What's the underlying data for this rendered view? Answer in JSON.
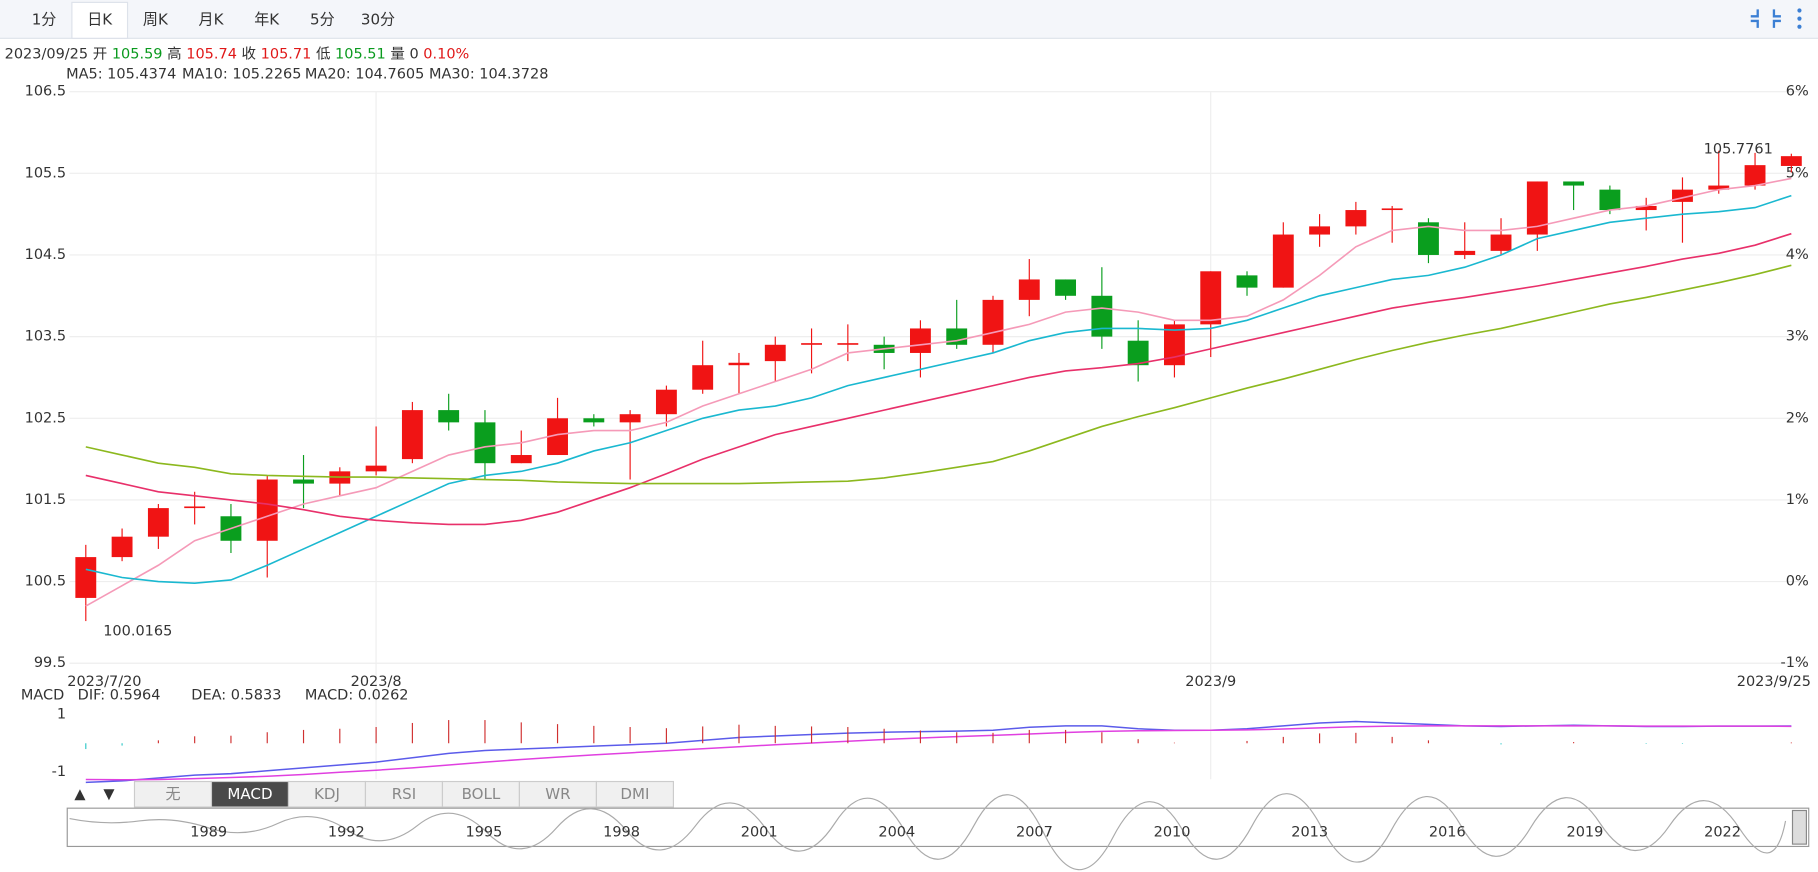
{
  "toolbar": {
    "tabs": [
      "1分",
      "日K",
      "周K",
      "月K",
      "年K",
      "5分",
      "30分"
    ],
    "active": 1
  },
  "quote_line": [
    {
      "text": "2023/09/25",
      "color": "#333"
    },
    {
      "text": "开",
      "color": "#333"
    },
    {
      "text": "105.59",
      "color": "#0a9a1e"
    },
    {
      "text": "高",
      "color": "#333"
    },
    {
      "text": "105.74",
      "color": "#e01818"
    },
    {
      "text": "收",
      "color": "#333"
    },
    {
      "text": "105.71",
      "color": "#e01818"
    },
    {
      "text": "低",
      "color": "#333"
    },
    {
      "text": "105.51",
      "color": "#0a9a1e"
    },
    {
      "text": "量",
      "color": "#333"
    },
    {
      "text": "0",
      "color": "#333"
    },
    {
      "text": "0.10%",
      "color": "#e01818"
    }
  ],
  "chart_data": [
    {
      "type": "candlestick",
      "up_color": "#f01414",
      "down_color": "#0a9e1e",
      "categories": [
        "2023/7/20",
        null,
        null,
        null,
        null,
        null,
        null,
        null,
        "2023/8",
        null,
        null,
        null,
        null,
        null,
        null,
        null,
        null,
        null,
        null,
        null,
        null,
        null,
        null,
        null,
        null,
        null,
        null,
        null,
        null,
        null,
        null,
        "2023/9",
        null,
        null,
        null,
        null,
        null,
        null,
        null,
        null,
        null,
        null,
        null,
        null,
        null,
        null,
        null,
        "2023/9/25"
      ],
      "open": [
        100.3,
        100.8,
        101.05,
        101.4,
        101.3,
        101.0,
        101.75,
        101.7,
        101.85,
        102.0,
        102.6,
        102.45,
        101.95,
        102.05,
        102.5,
        102.45,
        102.55,
        102.85,
        103.15,
        103.2,
        103.4,
        103.4,
        103.4,
        103.3,
        103.6,
        103.4,
        103.95,
        104.2,
        104.0,
        103.45,
        103.15,
        103.65,
        104.25,
        104.1,
        104.75,
        104.85,
        105.05,
        104.9,
        104.5,
        104.55,
        104.75,
        105.4,
        105.3,
        105.05,
        105.15,
        105.3,
        105.35,
        105.59
      ],
      "high": [
        100.95,
        101.15,
        101.45,
        101.6,
        101.45,
        101.8,
        102.05,
        101.9,
        102.4,
        102.7,
        102.8,
        102.6,
        102.35,
        102.75,
        102.55,
        102.6,
        102.9,
        103.45,
        103.3,
        103.5,
        103.6,
        103.65,
        103.5,
        103.7,
        103.95,
        104.0,
        104.45,
        104.2,
        104.35,
        103.7,
        103.7,
        104.3,
        104.3,
        104.9,
        105.0,
        105.15,
        105.1,
        104.95,
        104.9,
        104.95,
        105.4,
        105.4,
        105.35,
        105.2,
        105.45,
        105.7761,
        105.75,
        105.74
      ],
      "low": [
        100.0165,
        100.75,
        100.9,
        101.2,
        100.85,
        100.55,
        101.4,
        101.55,
        101.8,
        101.95,
        102.35,
        101.75,
        101.95,
        102.05,
        102.4,
        101.75,
        102.4,
        102.8,
        102.8,
        102.95,
        103.05,
        103.2,
        103.1,
        103.0,
        103.35,
        103.3,
        103.75,
        103.95,
        103.35,
        102.95,
        103.0,
        103.25,
        104.0,
        104.1,
        104.6,
        104.75,
        104.65,
        104.4,
        104.45,
        104.5,
        104.55,
        105.05,
        105.0,
        104.8,
        104.65,
        105.25,
        105.3,
        105.51
      ],
      "close": [
        100.8,
        101.05,
        101.4,
        101.42,
        101.0,
        101.75,
        101.7,
        101.85,
        101.92,
        102.6,
        102.45,
        101.95,
        102.05,
        102.5,
        102.45,
        102.55,
        102.85,
        103.15,
        103.18,
        103.4,
        103.42,
        103.42,
        103.3,
        103.6,
        103.4,
        103.95,
        104.2,
        104.0,
        103.5,
        103.15,
        103.65,
        104.3,
        104.1,
        104.75,
        104.85,
        105.05,
        105.07,
        104.5,
        104.55,
        104.75,
        105.4,
        105.35,
        105.05,
        105.1,
        105.3,
        105.35,
        105.6,
        105.71
      ],
      "series": [
        {
          "name": "MA5: 105.4374",
          "color": "#f59ab8",
          "values": [
            100.2,
            100.45,
            100.7,
            101.0,
            101.15,
            101.3,
            101.45,
            101.55,
            101.65,
            101.85,
            102.05,
            102.15,
            102.2,
            102.3,
            102.35,
            102.35,
            102.45,
            102.65,
            102.8,
            102.95,
            103.1,
            103.3,
            103.35,
            103.4,
            103.45,
            103.55,
            103.65,
            103.8,
            103.85,
            103.8,
            103.7,
            103.7,
            103.75,
            103.95,
            104.25,
            104.6,
            104.8,
            104.85,
            104.8,
            104.8,
            104.85,
            104.95,
            105.05,
            105.1,
            105.2,
            105.3,
            105.35,
            105.4374
          ]
        },
        {
          "name": "MA10: 105.2265",
          "color": "#1ab8d0",
          "values": [
            100.65,
            100.55,
            100.5,
            100.48,
            100.52,
            100.7,
            100.9,
            101.1,
            101.3,
            101.5,
            101.7,
            101.8,
            101.85,
            101.95,
            102.1,
            102.2,
            102.35,
            102.5,
            102.6,
            102.65,
            102.75,
            102.9,
            103.0,
            103.1,
            103.2,
            103.3,
            103.45,
            103.55,
            103.6,
            103.6,
            103.58,
            103.6,
            103.7,
            103.85,
            104.0,
            104.1,
            104.2,
            104.25,
            104.35,
            104.5,
            104.7,
            104.8,
            104.9,
            104.95,
            105.0,
            105.03,
            105.08,
            105.2265
          ]
        },
        {
          "name": "MA20: 104.7605",
          "color": "#e8306a",
          "values": [
            101.8,
            101.7,
            101.6,
            101.55,
            101.5,
            101.45,
            101.38,
            101.3,
            101.25,
            101.22,
            101.2,
            101.2,
            101.25,
            101.35,
            101.5,
            101.65,
            101.82,
            102.0,
            102.15,
            102.3,
            102.4,
            102.5,
            102.6,
            102.7,
            102.8,
            102.9,
            103.0,
            103.08,
            103.12,
            103.17,
            103.25,
            103.35,
            103.45,
            103.55,
            103.65,
            103.75,
            103.85,
            103.92,
            103.98,
            104.05,
            104.12,
            104.2,
            104.28,
            104.36,
            104.45,
            104.52,
            104.62,
            104.7605
          ]
        },
        {
          "name": "MA30: 104.3728",
          "color": "#8cb81e",
          "values": [
            102.15,
            102.05,
            101.95,
            101.9,
            101.82,
            101.8,
            101.79,
            101.78,
            101.78,
            101.77,
            101.76,
            101.75,
            101.74,
            101.72,
            101.71,
            101.7,
            101.7,
            101.7,
            101.7,
            101.71,
            101.72,
            101.73,
            101.77,
            101.83,
            101.9,
            101.97,
            102.1,
            102.25,
            102.4,
            102.52,
            102.63,
            102.75,
            102.87,
            102.98,
            103.1,
            103.22,
            103.33,
            103.43,
            103.52,
            103.6,
            103.7,
            103.8,
            103.9,
            103.98,
            104.07,
            104.16,
            104.26,
            104.3728
          ]
        }
      ],
      "annotations": [
        {
          "text": "105.7761",
          "at": "high",
          "index": 45
        },
        {
          "text": "100.0165",
          "at": "low",
          "index": 0
        }
      ],
      "ylim": [
        99.5,
        106.5
      ],
      "yticks": [
        99.5,
        100.5,
        101.5,
        102.5,
        103.5,
        104.5,
        105.5,
        106.5
      ],
      "y2lim": [
        -1,
        6
      ],
      "y2ticks": [
        {
          "value": -1,
          "label": "-1%"
        },
        {
          "value": 0,
          "label": "0%"
        },
        {
          "value": 1,
          "label": "1%"
        },
        {
          "value": 2,
          "label": "2%"
        },
        {
          "value": 3,
          "label": "3%"
        },
        {
          "value": 4,
          "label": "4%"
        },
        {
          "value": 5,
          "label": "5%"
        },
        {
          "value": 6,
          "label": "6%"
        }
      ],
      "grid": true
    },
    {
      "type": "macd",
      "label": "MACD",
      "ylim": [
        -1.24,
        1.32
      ],
      "yticks": [
        -1,
        1
      ],
      "series": [
        {
          "name": "DIF: 0.5964",
          "color": "#5b5bea",
          "values": [
            -1.35,
            -1.3,
            -1.2,
            -1.1,
            -1.05,
            -0.95,
            -0.85,
            -0.75,
            -0.65,
            -0.5,
            -0.35,
            -0.25,
            -0.2,
            -0.15,
            -0.1,
            -0.05,
            0.0,
            0.1,
            0.2,
            0.25,
            0.3,
            0.35,
            0.38,
            0.4,
            0.42,
            0.45,
            0.55,
            0.6,
            0.6,
            0.5,
            0.45,
            0.45,
            0.5,
            0.6,
            0.7,
            0.75,
            0.7,
            0.65,
            0.6,
            0.58,
            0.6,
            0.62,
            0.6,
            0.58,
            0.58,
            0.59,
            0.59,
            0.5964
          ]
        },
        {
          "name": "DEA: 0.5833",
          "color": "#e040e0",
          "values": [
            -1.25,
            -1.26,
            -1.25,
            -1.22,
            -1.18,
            -1.14,
            -1.08,
            -1.0,
            -0.93,
            -0.85,
            -0.75,
            -0.65,
            -0.56,
            -0.48,
            -0.4,
            -0.33,
            -0.26,
            -0.19,
            -0.12,
            -0.05,
            0.01,
            0.07,
            0.13,
            0.18,
            0.23,
            0.27,
            0.32,
            0.37,
            0.41,
            0.43,
            0.44,
            0.45,
            0.46,
            0.49,
            0.53,
            0.57,
            0.59,
            0.6,
            0.6,
            0.6,
            0.6,
            0.6,
            0.6,
            0.59,
            0.59,
            0.59,
            0.59,
            0.5833
          ]
        },
        {
          "name": "MACD: 0.0262",
          "color": "#d03030",
          "down_color": "#30c8c8",
          "bars": true,
          "values": [
            -0.2,
            -0.08,
            0.1,
            0.24,
            0.26,
            0.38,
            0.46,
            0.5,
            0.56,
            0.7,
            0.8,
            0.8,
            0.72,
            0.66,
            0.6,
            0.56,
            0.52,
            0.58,
            0.64,
            0.6,
            0.58,
            0.56,
            0.5,
            0.44,
            0.38,
            0.36,
            0.46,
            0.46,
            0.38,
            0.14,
            0.02,
            0.0,
            0.08,
            0.22,
            0.34,
            0.36,
            0.22,
            0.1,
            0.0,
            -0.04,
            0.0,
            0.04,
            0.0,
            -0.02,
            -0.02,
            0.0,
            0.0,
            0.0262
          ]
        }
      ]
    }
  ],
  "indicator_tabs": {
    "arrows": [
      "▲",
      "▼"
    ],
    "tabs": [
      "无",
      "MACD",
      "KDJ",
      "RSI",
      "BOLL",
      "WR",
      "DMI"
    ],
    "active": 1
  },
  "navigator": {
    "years": [
      "1989",
      "1992",
      "1995",
      "1998",
      "2001",
      "2004",
      "2007",
      "2010",
      "2013",
      "2016",
      "2019",
      "2022"
    ]
  }
}
